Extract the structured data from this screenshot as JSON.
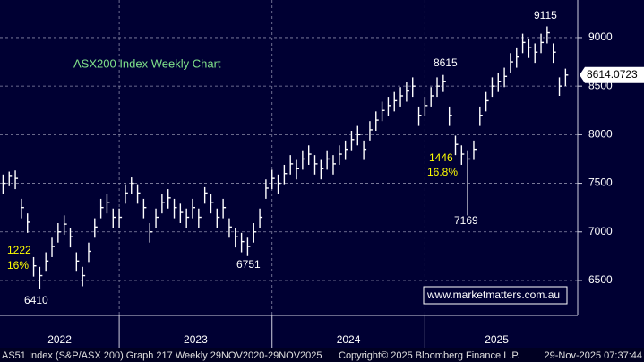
{
  "chart_data": {
    "type": "ohlc",
    "title": "ASX200 Index Weekly Chart",
    "color": "#ffffff",
    "xlim": [
      2022.22,
      2026.0
    ],
    "xticks": [
      2023,
      2024,
      2025
    ],
    "year_labels": [
      {
        "value": 2022.61,
        "label": "2022"
      },
      {
        "value": 2023.5,
        "label": "2023"
      },
      {
        "value": 2024.5,
        "label": "2024"
      },
      {
        "value": 2025.47,
        "label": "2025"
      }
    ],
    "ylim": [
      6140,
      9387
    ],
    "yticks": [
      6500,
      7000,
      7500,
      8000,
      8500,
      9000
    ],
    "grid": true,
    "last_price": 8614.0723,
    "x": [
      2022.24,
      2022.28,
      2022.32,
      2022.36,
      2022.4,
      2022.44,
      2022.48,
      2022.52,
      2022.56,
      2022.6,
      2022.64,
      2022.68,
      2022.72,
      2022.76,
      2022.8,
      2022.84,
      2022.88,
      2022.92,
      2022.96,
      2023.0,
      2023.04,
      2023.08,
      2023.12,
      2023.16,
      2023.2,
      2023.24,
      2023.28,
      2023.32,
      2023.36,
      2023.4,
      2023.44,
      2023.48,
      2023.52,
      2023.56,
      2023.6,
      2023.64,
      2023.68,
      2023.72,
      2023.76,
      2023.8,
      2023.84,
      2023.88,
      2023.92,
      2023.96,
      2024.0,
      2024.04,
      2024.08,
      2024.12,
      2024.16,
      2024.2,
      2024.24,
      2024.28,
      2024.32,
      2024.36,
      2024.4,
      2024.44,
      2024.48,
      2024.52,
      2024.56,
      2024.6,
      2024.64,
      2024.68,
      2024.72,
      2024.76,
      2024.8,
      2024.84,
      2024.88,
      2024.92,
      2024.96,
      2025.0,
      2025.04,
      2025.08,
      2025.12,
      2025.16,
      2025.2,
      2025.24,
      2025.28,
      2025.32,
      2025.36,
      2025.4,
      2025.44,
      2025.48,
      2025.52,
      2025.56,
      2025.6,
      2025.64,
      2025.68,
      2025.72,
      2025.76,
      2025.8,
      2025.84,
      2025.88,
      2025.92
    ],
    "high": [
      7590,
      7620,
      7632,
      7340,
      7190,
      6740,
      6640,
      6790,
      6940,
      7090,
      7170,
      7040,
      6790,
      6640,
      6890,
      7140,
      7340,
      7390,
      7240,
      7240,
      7490,
      7560,
      7490,
      7340,
      7090,
      7240,
      7390,
      7440,
      7340,
      7290,
      7240,
      7340,
      7240,
      7460,
      7390,
      7240,
      7340,
      7140,
      7040,
      6990,
      6940,
      7090,
      7240,
      7540,
      7640,
      7590,
      7690,
      7790,
      7740,
      7840,
      7890,
      7790,
      7740,
      7840,
      7790,
      7890,
      7940,
      8040,
      8090,
      7940,
      8140,
      8240,
      8340,
      8390,
      8440,
      8490,
      8540,
      8590,
      8290,
      8390,
      8490,
      8590,
      8615,
      8290,
      7990,
      7890,
      7840,
      7940,
      8290,
      8440,
      8590,
      8640,
      8690,
      8840,
      8890,
      9040,
      8990,
      8940,
      9040,
      9115,
      8940,
      8590,
      8680
    ],
    "low": [
      7390,
      7470,
      7440,
      7140,
      6990,
      6540,
      6410,
      6590,
      6740,
      6890,
      6970,
      6840,
      6590,
      6440,
      6690,
      6940,
      7140,
      7190,
      7040,
      7040,
      7290,
      7390,
      7290,
      7140,
      6890,
      7040,
      7190,
      7240,
      7140,
      7090,
      7040,
      7140,
      7040,
      7290,
      7190,
      7040,
      7140,
      6940,
      6840,
      6790,
      6751,
      6890,
      7040,
      7340,
      7440,
      7390,
      7490,
      7590,
      7540,
      7640,
      7690,
      7590,
      7540,
      7640,
      7590,
      7690,
      7740,
      7840,
      7890,
      7740,
      7940,
      8040,
      8140,
      8190,
      8240,
      8290,
      8340,
      8390,
      8090,
      8190,
      8290,
      8390,
      8440,
      8090,
      7790,
      7690,
      7169,
      7740,
      8090,
      8240,
      8390,
      8440,
      8490,
      8640,
      8690,
      8840,
      8790,
      8740,
      8840,
      8940,
      8740,
      8400,
      8500
    ],
    "close": [
      7500,
      7580,
      7550,
      7250,
      7100,
      6650,
      6550,
      6700,
      6850,
      7000,
      7080,
      6950,
      6700,
      6550,
      6800,
      7050,
      7250,
      7300,
      7150,
      7150,
      7400,
      7500,
      7400,
      7250,
      7000,
      7150,
      7300,
      7350,
      7250,
      7200,
      7150,
      7250,
      7150,
      7400,
      7300,
      7150,
      7250,
      7050,
      6950,
      6900,
      6850,
      7000,
      7150,
      7450,
      7550,
      7500,
      7600,
      7700,
      7650,
      7750,
      7800,
      7700,
      7650,
      7750,
      7700,
      7800,
      7850,
      7950,
      8000,
      7850,
      8050,
      8150,
      8250,
      8300,
      8350,
      8400,
      8450,
      8500,
      8200,
      8300,
      8400,
      8500,
      8550,
      8200,
      7900,
      7800,
      7750,
      7850,
      8200,
      8350,
      8500,
      8550,
      8600,
      8750,
      8800,
      8950,
      8900,
      8850,
      8950,
      9050,
      8850,
      8500,
      8614.07
    ],
    "annotations": [
      "9115",
      "8615",
      "1446",
      "16.8%",
      "7169",
      "6751",
      "6410",
      "1222",
      "16%"
    ],
    "watermark": "www.marketmatters.com.au",
    "footer": {
      "left": "AS51 Index (S&P/ASX 200) Graph 217 Weekly 29NOV2020-29NOV2025",
      "center": "Copyright© 2025 Bloomberg Finance L.P.",
      "right": "29-Nov-2025 07:37:44"
    }
  }
}
